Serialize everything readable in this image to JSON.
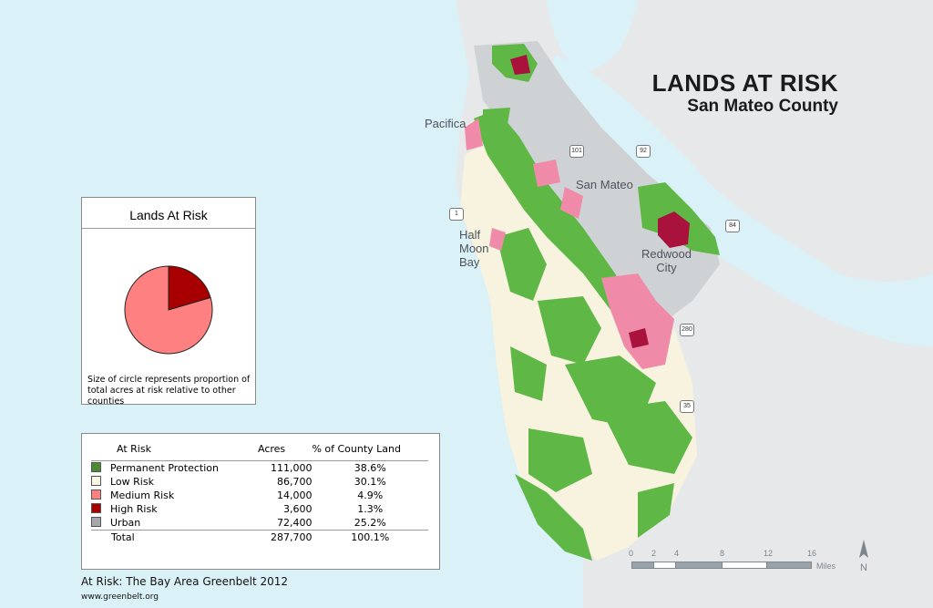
{
  "map": {
    "title": "LANDS AT RISK",
    "subtitle": "San Mateo County",
    "places": [
      "Pacifica",
      "San Mateo",
      "Half\nMoon\nBay",
      "Redwood\nCity"
    ],
    "highways": [
      "101",
      "92",
      "1",
      "84",
      "280",
      "35"
    ],
    "colors": {
      "water": "#d9f1f7",
      "land": "#e6e8ea",
      "urban": "#cfd2d5",
      "permanent_protection": "#5fb846",
      "low_risk": "#f7f3df",
      "medium_risk": "#f08aa9",
      "high_risk": "#a8123d"
    }
  },
  "pie": {
    "title": "Lands At Risk",
    "note": "Size of circle represents proportion of total acres at risk relative to other counties",
    "slices": [
      {
        "label": "Medium Risk",
        "value": 14000,
        "color": "#ff8080"
      },
      {
        "label": "High Risk",
        "value": 3600,
        "color": "#a80000"
      }
    ]
  },
  "legend": {
    "headers": [
      "At Risk",
      "Acres",
      "% of County Land"
    ],
    "rows": [
      {
        "label": "Permanent Protection",
        "acres": "111,000",
        "pct": "38.6%",
        "color": "#4c8a32"
      },
      {
        "label": "Low Risk",
        "acres": "86,700",
        "pct": "30.1%",
        "color": "#fbf6e6"
      },
      {
        "label": "Medium Risk",
        "acres": "14,000",
        "pct": "4.9%",
        "color": "#ff8080"
      },
      {
        "label": "High Risk",
        "acres": "3,600",
        "pct": "1.3%",
        "color": "#a80000"
      },
      {
        "label": "Urban",
        "acres": "72,400",
        "pct": "25.2%",
        "color": "#a8a8a8"
      }
    ],
    "total": {
      "label": "Total",
      "acres": "287,700",
      "pct": "100.1%"
    }
  },
  "scale": {
    "ticks": [
      "0",
      "2",
      "4",
      "8",
      "12",
      "16"
    ],
    "unit": "Miles"
  },
  "north_label": "N",
  "credit": "At Risk: The Bay Area Greenbelt 2012",
  "url": "www.greenbelt.org"
}
